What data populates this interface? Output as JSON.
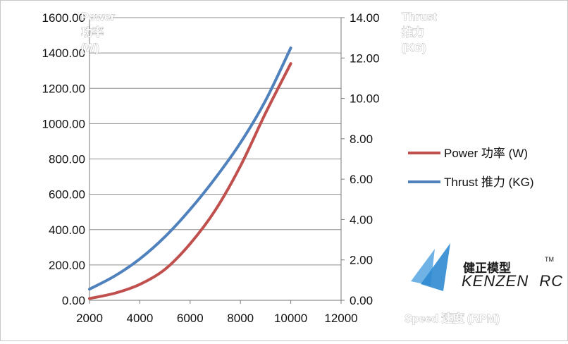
{
  "chart_data": {
    "type": "line",
    "x_axis": {
      "label": "Speed 速度 (RPM)",
      "min": 2000,
      "max": 12000,
      "ticks": [
        "2000",
        "4000",
        "6000",
        "8000",
        "10000",
        "12000"
      ]
    },
    "y_axis_left": {
      "label_lines": [
        "Power",
        "功率",
        "(W)"
      ],
      "min": 0,
      "max": 1600,
      "ticks": [
        "0.00",
        "200.00",
        "400.00",
        "600.00",
        "800.00",
        "1000.00",
        "1200.00",
        "1400.00",
        "1600.00"
      ]
    },
    "y_axis_right": {
      "label_lines": [
        "Thrust",
        "推力",
        "(KG)"
      ],
      "min": 0,
      "max": 14,
      "ticks": [
        "0.00",
        "2.00",
        "4.00",
        "6.00",
        "8.00",
        "10.00",
        "12.00",
        "14.00"
      ]
    },
    "grid": "horizontal",
    "legend_position": "right",
    "series": [
      {
        "name": "Power 功率 (W)",
        "axis": "left",
        "color": "#c0504d",
        "x": [
          2000,
          3000,
          4000,
          5000,
          6000,
          7000,
          8000,
          9000,
          10000
        ],
        "y": [
          10,
          40,
          90,
          175,
          320,
          510,
          760,
          1060,
          1340
        ]
      },
      {
        "name": "Thrust 推力 (KG)",
        "axis": "right",
        "color": "#4f81bd",
        "x": [
          2000,
          3000,
          4000,
          5000,
          6000,
          7000,
          8000,
          9000,
          10000
        ],
        "y": [
          0.55,
          1.2,
          2.05,
          3.15,
          4.5,
          6.05,
          7.8,
          9.9,
          12.5
        ]
      }
    ]
  },
  "logo": {
    "chinese_name": "健正模型",
    "english_name": "KENZEN",
    "suffix": "RC",
    "trademark": "TM"
  }
}
